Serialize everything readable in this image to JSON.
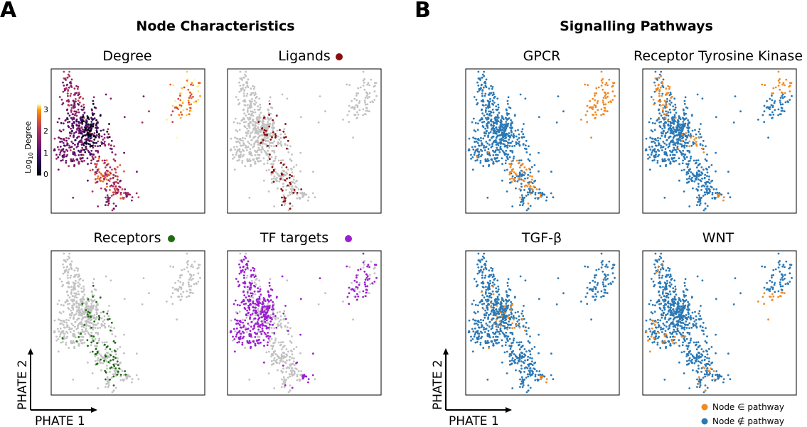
{
  "panel_letters": {
    "a": "A",
    "b": "B"
  },
  "sections": {
    "node": "Node Characteristics",
    "signalling": "Signalling Pathways"
  },
  "subplots": {
    "degree": "Degree",
    "ligands": "Ligands",
    "receptors": "Receptors",
    "tf_targets": "TF targets",
    "gpcr": "GPCR",
    "rtk": "Receptor Tyrosine Kinase",
    "tgfb": "TGF-β",
    "wnt": "WNT"
  },
  "colorbar": {
    "label_prefix": "Log",
    "label_sub": "10",
    "label_suffix": " Degree",
    "ticks": [
      "0",
      "1",
      "2",
      "3"
    ],
    "colormap": "inferno"
  },
  "axes": {
    "x": "PHATE 1",
    "y": "PHATE 2"
  },
  "legend": {
    "in": "Node ∈ pathway",
    "out": "Node ∉ pathway"
  },
  "colors": {
    "grey": "#c2c2c2",
    "ligand": "#8b0d0d",
    "receptor": "#1e6b10",
    "tf_target": "#9b1fd0",
    "pathway_in": "#f08a24",
    "pathway_out": "#2a78b5"
  },
  "chart_data": {
    "type": "scatter",
    "description_of_encoding": null,
    "panels": [
      {
        "id": "degree",
        "color_by": "Log10 Degree",
        "range": [
          0,
          3.3
        ]
      },
      {
        "id": "ligands",
        "highlight": "Ligands"
      },
      {
        "id": "receptors",
        "highlight": "Receptors"
      },
      {
        "id": "tf_targets",
        "highlight": "TF targets"
      },
      {
        "id": "gpcr",
        "highlight": "Node ∈ pathway"
      },
      {
        "id": "rtk",
        "highlight": "Node ∈ pathway"
      },
      {
        "id": "tgfb",
        "highlight": "Node ∈ pathway"
      },
      {
        "id": "wnt",
        "highlight": "Node ∈ pathway"
      }
    ],
    "xlabel": "PHATE 1",
    "ylabel": "PHATE 2"
  }
}
